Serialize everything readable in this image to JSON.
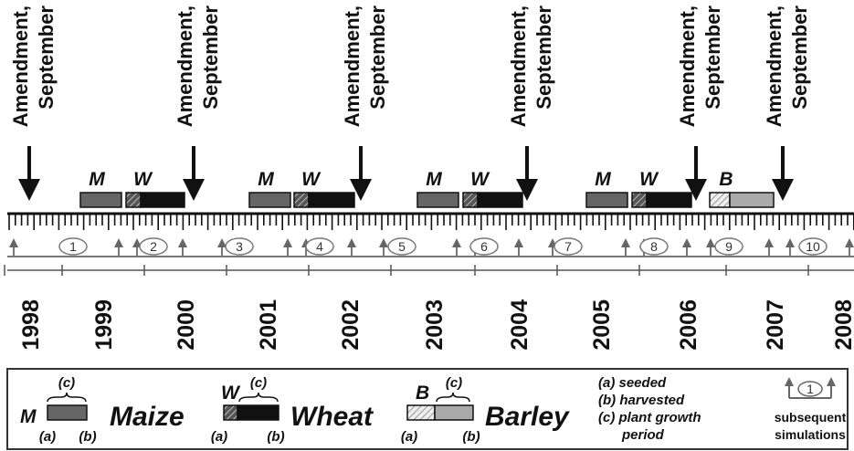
{
  "amendments": [
    {
      "line1": "Amendment,",
      "line2": "September"
    },
    {
      "line1": "Amendment,",
      "line2": "September"
    },
    {
      "line1": "Amendment,",
      "line2": "September"
    },
    {
      "line1": "Amendment,",
      "line2": "September"
    },
    {
      "line1": "Amendment,",
      "line2": "September"
    },
    {
      "line1": "Amendment,",
      "line2": "September"
    }
  ],
  "crops": [
    "M",
    "W",
    "M",
    "W",
    "M",
    "W",
    "M",
    "W",
    "B"
  ],
  "simulations": [
    "1",
    "2",
    "3",
    "4",
    "5",
    "6",
    "7",
    "8",
    "9",
    "10"
  ],
  "years": [
    "1998",
    "1999",
    "2000",
    "2001",
    "2002",
    "2003",
    "2004",
    "2005",
    "2006",
    "2007",
    "2008"
  ],
  "legend": {
    "maize": {
      "letter": "M",
      "period": "(c)",
      "seeded": "(a)",
      "harvested": "(b)",
      "name": "Maize"
    },
    "wheat": {
      "letter": "W",
      "period": "(c)",
      "seeded": "(a)",
      "harvested": "(b)",
      "name": "Wheat"
    },
    "barley": {
      "letter": "B",
      "period": "(c)",
      "seeded": "(a)",
      "harvested": "(b)",
      "name": "Barley"
    },
    "key": [
      "(a) seeded",
      "(b) harvested",
      "(c) plant growth",
      "period"
    ],
    "sim": {
      "number": "1",
      "line1": "subsequent",
      "line2": "simulations"
    }
  }
}
